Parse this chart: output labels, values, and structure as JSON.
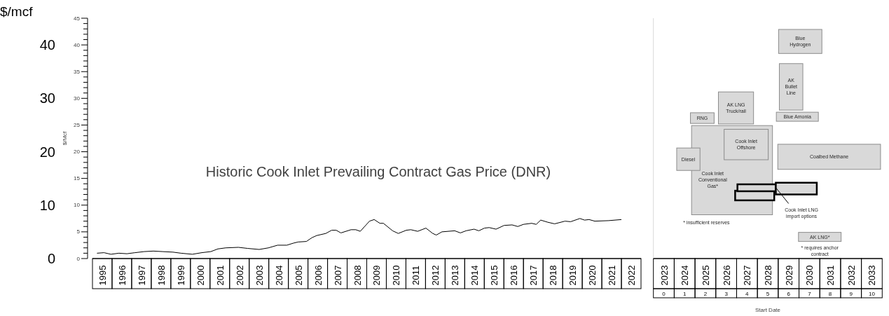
{
  "chart_data": [
    {
      "type": "line",
      "ylabel": "$/mcf",
      "y2label": "$/Mcf",
      "annotations": [
        "Historic Cook Inlet Prevailing Contract Gas Price (DNR)"
      ],
      "xlim": [
        1995,
        2023
      ],
      "xticks": [
        {
          "value": 1995.5,
          "label": "1995"
        },
        {
          "value": 1996.5,
          "label": "1996"
        },
        {
          "value": 1997.5,
          "label": "1997"
        },
        {
          "value": 1998.5,
          "label": "1998"
        },
        {
          "value": 1999.5,
          "label": "1999"
        },
        {
          "value": 2000.5,
          "label": "2000"
        },
        {
          "value": 2001.5,
          "label": "2001"
        },
        {
          "value": 2002.5,
          "label": "2002"
        },
        {
          "value": 2003.5,
          "label": "2003"
        },
        {
          "value": 2004.5,
          "label": "2004"
        },
        {
          "value": 2005.5,
          "label": "2005"
        },
        {
          "value": 2006.5,
          "label": "2006"
        },
        {
          "value": 2007.5,
          "label": "2007"
        },
        {
          "value": 2008.5,
          "label": "2008"
        },
        {
          "value": 2009.5,
          "label": "2009"
        },
        {
          "value": 2010.5,
          "label": "2010"
        },
        {
          "value": 2011.5,
          "label": "2011"
        },
        {
          "value": 2012.5,
          "label": "2012"
        },
        {
          "value": 2013.5,
          "label": "2013"
        },
        {
          "value": 2014.5,
          "label": "2014"
        },
        {
          "value": 2015.5,
          "label": "2015"
        },
        {
          "value": 2016.5,
          "label": "2016"
        },
        {
          "value": 2017.5,
          "label": "2017"
        },
        {
          "value": 2018.5,
          "label": "2018"
        },
        {
          "value": 2019.5,
          "label": "2019"
        },
        {
          "value": 2020.5,
          "label": "2020"
        },
        {
          "value": 2021.5,
          "label": "2021"
        },
        {
          "value": 2022.5,
          "label": "2022"
        }
      ],
      "ylim": [
        0,
        45
      ],
      "yticks": [
        0,
        10,
        20,
        30,
        40
      ],
      "y2lim": [
        0,
        45
      ],
      "y2ticks": [
        0,
        {
          "value": 1,
          "label": null
        },
        {
          "value": 2,
          "label": null
        },
        {
          "value": 3,
          "label": null
        },
        {
          "value": 4,
          "label": null
        },
        5,
        {
          "value": 6,
          "label": null
        },
        {
          "value": 7,
          "label": null
        },
        {
          "value": 8,
          "label": null
        },
        {
          "value": 9,
          "label": null
        },
        10,
        {
          "value": 11,
          "label": null
        },
        {
          "value": 12,
          "label": null
        },
        {
          "value": 13,
          "label": null
        },
        {
          "value": 14,
          "label": null
        },
        15,
        {
          "value": 16,
          "label": null
        },
        {
          "value": 17,
          "label": null
        },
        {
          "value": 18,
          "label": null
        },
        {
          "value": 19,
          "label": null
        },
        20,
        {
          "value": 21,
          "label": null
        },
        {
          "value": 22,
          "label": null
        },
        {
          "value": 23,
          "label": null
        },
        {
          "value": 24,
          "label": null
        },
        25,
        {
          "value": 26,
          "label": null
        },
        {
          "value": 27,
          "label": null
        },
        {
          "value": 28,
          "label": null
        },
        {
          "value": 29,
          "label": null
        },
        30,
        {
          "value": 31,
          "label": null
        },
        {
          "value": 32,
          "label": null
        },
        {
          "value": 33,
          "label": null
        },
        {
          "value": 34,
          "label": null
        },
        35,
        {
          "value": 36,
          "label": null
        },
        {
          "value": 37,
          "label": null
        },
        {
          "value": 38,
          "label": null
        },
        {
          "value": 39,
          "label": null
        },
        40,
        {
          "value": 41,
          "label": null
        },
        {
          "value": 42,
          "label": null
        },
        {
          "value": 43,
          "label": null
        },
        {
          "value": 44,
          "label": null
        },
        45
      ],
      "series": [
        {
          "color": "#000000",
          "x": [
            1995.23,
            1995.59,
            1995.94,
            1996.35,
            1996.76,
            1997.17,
            1997.64,
            1998.11,
            1998.58,
            1999.11,
            1999.52,
            2000.1,
            2000.58,
            2001.04,
            2001.4,
            2001.8,
            2002.45,
            2002.92,
            2003.51,
            2003.98,
            2004.45,
            2004.92,
            2005.27,
            2005.5,
            2005.92,
            2006.2,
            2006.44,
            2006.91,
            2007.21,
            2007.44,
            2007.68,
            2008.2,
            2008.44,
            2008.67,
            2009.14,
            2009.38,
            2009.67,
            2009.85,
            2010.32,
            2010.61,
            2011.02,
            2011.25,
            2011.6,
            2012.02,
            2012.37,
            2012.55,
            2012.84,
            2013.49,
            2013.78,
            2014.07,
            2014.48,
            2014.72,
            2015.01,
            2015.25,
            2015.6,
            2016.01,
            2016.42,
            2016.71,
            2017.0,
            2017.42,
            2017.65,
            2017.88,
            2018.24,
            2018.59,
            2019.12,
            2019.41,
            2019.88,
            2020.12,
            2020.35,
            2020.64,
            2021.35,
            2022.0
          ],
          "values": [
            1.0,
            1.1,
            0.8,
            1.0,
            0.9,
            1.1,
            1.3,
            1.4,
            1.3,
            1.2,
            1.0,
            0.8,
            1.1,
            1.3,
            1.8,
            2.0,
            2.1,
            1.9,
            1.7,
            2.0,
            2.5,
            2.5,
            2.9,
            3.1,
            3.2,
            3.9,
            4.3,
            4.7,
            5.3,
            5.3,
            4.8,
            5.4,
            5.4,
            5.1,
            7.0,
            7.3,
            6.6,
            6.6,
            5.2,
            4.7,
            5.3,
            5.4,
            5.1,
            5.7,
            4.7,
            4.4,
            5.0,
            5.2,
            4.8,
            5.2,
            5.5,
            5.2,
            5.7,
            5.8,
            5.5,
            6.2,
            6.3,
            6.0,
            6.4,
            6.6,
            6.4,
            7.2,
            6.8,
            6.5,
            7.0,
            6.9,
            7.5,
            7.2,
            7.3,
            7.0,
            7.1,
            7.3
          ]
        }
      ]
    },
    {
      "type": "bar",
      "xlabel": "Start Date",
      "xlim": [
        2023,
        2034
      ],
      "xticks": [
        {
          "value": 2023.5,
          "label": "2023"
        },
        {
          "value": 2024.5,
          "label": "2024"
        },
        {
          "value": 2025.5,
          "label": "2025"
        },
        {
          "value": 2026.5,
          "label": "2026"
        },
        {
          "value": 2027.5,
          "label": "2027"
        },
        {
          "value": 2028.5,
          "label": "2028"
        },
        {
          "value": 2029.5,
          "label": "2029"
        },
        {
          "value": 2030.5,
          "label": "2030"
        },
        {
          "value": 2031.5,
          "label": "2031"
        },
        {
          "value": 2032.5,
          "label": "2032"
        },
        {
          "value": 2033.5,
          "label": "2033"
        }
      ],
      "x2lim": [
        -0.5,
        10.5
      ],
      "x2ticks": [
        0,
        1,
        2,
        3,
        4,
        5,
        6,
        7,
        8,
        9,
        10
      ],
      "ylim": [
        0,
        45
      ],
      "tick_labels": "x",
      "x": [
        2024.68,
        2025.35,
        2026.78,
        2026.97,
        2027.46,
        2027.87,
        2027.96,
        2029.62,
        2029.87,
        2029.92,
        2030.06,
        2031.0,
        2031.45
      ],
      "base": [
        16.5,
        25.3,
        8.2,
        25.2,
        18.5,
        10.9,
        12.6,
        27.8,
        12.0,
        25.7,
        38.4,
        3.2,
        16.7
      ],
      "values": [
        4.2,
        2.0,
        16.7,
        6.0,
        5.7,
        1.8,
        1.3,
        8.7,
        2.2,
        1.7,
        4.5,
        1.7,
        4.7
      ],
      "color": "#d9d9d9",
      "annotations": [
        "Blue Hydrogen",
        "AK Bullet Line",
        "Blue Amonia",
        "AK LNG Truck/rail",
        "RNG",
        "Cook Inlet Conventional Gas*",
        "Cook Inlet Offshore",
        "Diesel",
        "Coalbed Methane",
        "Cook Inlet LNG import options",
        "* insufficient reserves",
        "AK LNG*",
        "* requires anchor contract"
      ]
    }
  ]
}
